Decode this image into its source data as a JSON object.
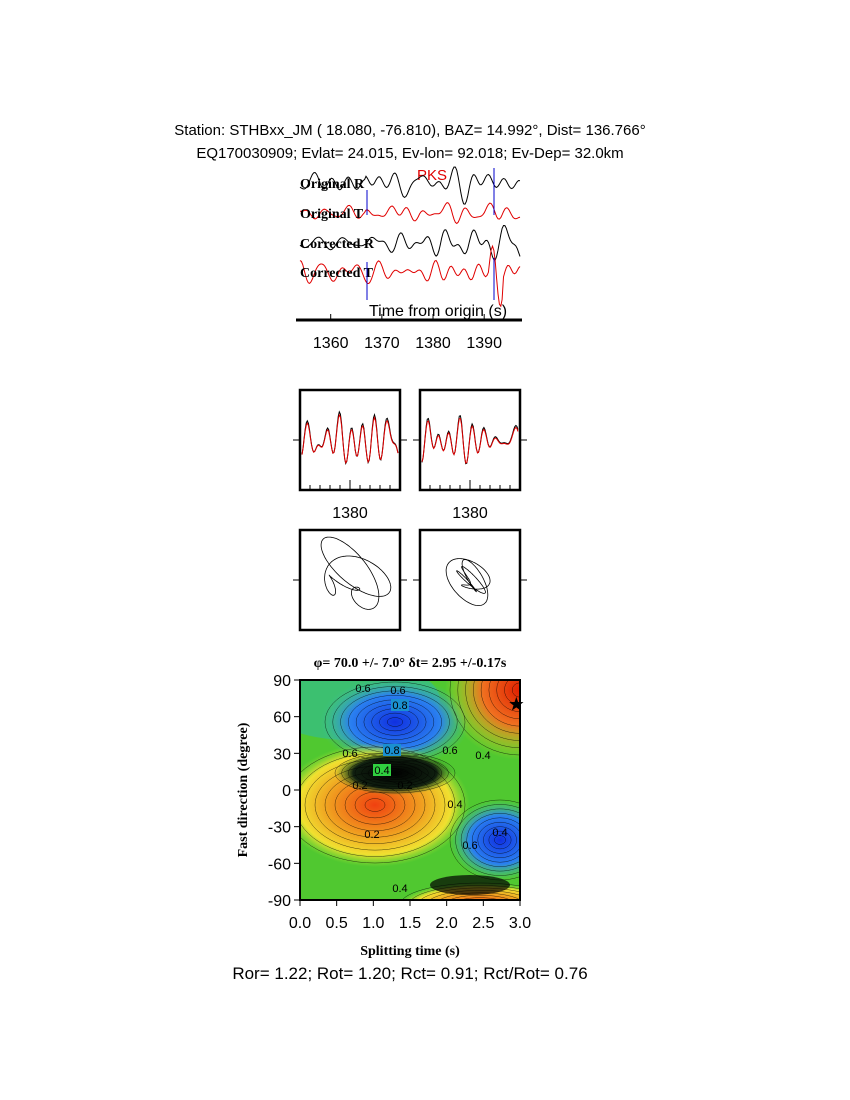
{
  "header": {
    "line1": "Station: STHBxx_JM (  18.080,  -76.810), BAZ=   14.992°, Dist=  136.766°",
    "line2": "EQ170030909; Evlat=  24.015, Ev-lon=  92.018; Ev-Dep= 32.0km"
  },
  "traces": {
    "labels": [
      "Original R",
      "Original T",
      "Corrected R",
      "Corrected T"
    ],
    "phase": "PKS",
    "xlabel": "Time from origin (s)",
    "xlim": [
      1354,
      1397
    ],
    "xticks": [
      1360,
      1370,
      1380,
      1390
    ]
  },
  "windows": {
    "xlim": [
      1370,
      1390
    ],
    "xticks": [
      1380
    ]
  },
  "contour": {
    "title": "φ= 70.0 +/- 7.0° δt= 2.95 +/-0.17s",
    "xlabel": "Splitting time (s)",
    "ylabel": "Fast direction (degree)",
    "xlim": [
      0,
      3
    ],
    "ylim": [
      -90,
      90
    ],
    "xticks": [
      {
        "value": 0,
        "label": "0.0"
      },
      0.5,
      {
        "value": 1,
        "label": "1.0"
      },
      1.5,
      {
        "value": 2,
        "label": "2.0"
      },
      2.5,
      {
        "value": 3,
        "label": "3.0"
      }
    ],
    "yticks": [
      90,
      60,
      30,
      0,
      -30,
      -60,
      -90
    ],
    "best": {
      "dt": 2.95,
      "phi": 70
    },
    "contour_labels": [
      0.6,
      0.6,
      0.8,
      0.6,
      0.8,
      0.6,
      0.4,
      0.2,
      0.2,
      0.4,
      0.4,
      0.2,
      0.4,
      0.6,
      0.4
    ]
  },
  "footer": "Ror= 1.22; Rot= 1.20; Rct= 0.91; Rct/Rot= 0.76"
}
